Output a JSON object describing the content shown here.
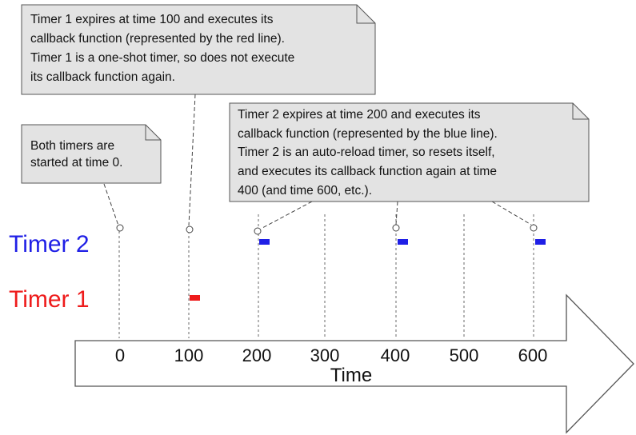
{
  "timers": {
    "timer2": {
      "label": "Timer 2",
      "color": "#1f1fe6",
      "callback_times": [
        200,
        400,
        600
      ]
    },
    "timer1": {
      "label": "Timer 1",
      "color": "#ee1b1b",
      "callback_times": [
        100
      ]
    }
  },
  "axis": {
    "label": "Time",
    "ticks": [
      0,
      100,
      200,
      300,
      400,
      500,
      600
    ],
    "tick_labels": [
      "0",
      "100",
      "200",
      "300",
      "400",
      "500",
      "600"
    ]
  },
  "event_marker_times": [
    0,
    100,
    200,
    400,
    600
  ],
  "callouts": {
    "start": {
      "lines": [
        "Both timers are",
        "started at time 0."
      ]
    },
    "timer1_expiry": {
      "lines": [
        "Timer 1 expires at time 100 and executes its",
        "callback function (represented by the red line).",
        "Timer 1 is a one-shot timer, so does not execute",
        "its callback function again."
      ]
    },
    "timer2_expiry": {
      "lines": [
        "Timer 2 expires at time 200 and executes its",
        "callback function (represented by the blue line).",
        "Timer 2 is an auto-reload timer, so resets itself,",
        "and executes its callback function again at time",
        "400 (and time 600, etc.)."
      ]
    }
  },
  "colors": {
    "callout_fill": "#e3e3e3",
    "outline": "#555555"
  }
}
